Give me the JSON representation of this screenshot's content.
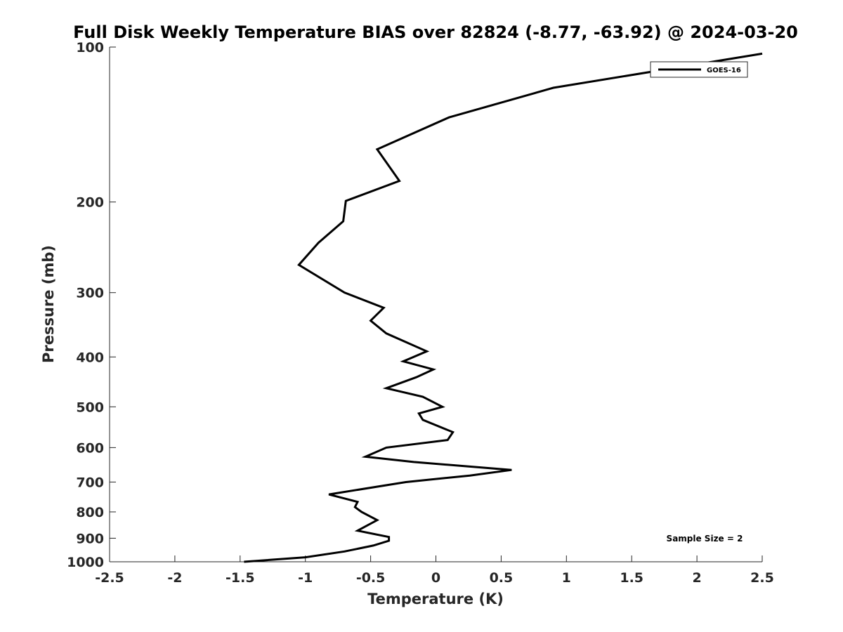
{
  "chart_data": {
    "type": "line",
    "title": "Full Disk Weekly Temperature BIAS over 82824 (-8.77, -63.92) @ 2024-03-20",
    "xlabel": "Temperature (K)",
    "ylabel": "Pressure (mb)",
    "xlim": [
      -2.5,
      2.5
    ],
    "ylim": [
      1000,
      100
    ],
    "y_scale": "log",
    "y_reversed": true,
    "grid": false,
    "legend_position": "top-right",
    "x_ticks": [
      -2.5,
      -2,
      -1.5,
      -1,
      -0.5,
      0,
      0.5,
      1,
      1.5,
      2,
      2.5
    ],
    "x_tick_labels": [
      "-2.5",
      "-2",
      "-1.5",
      "-1",
      "-0.5",
      "0",
      "0.5",
      "1",
      "1.5",
      "2",
      "2.5"
    ],
    "y_ticks": [
      100,
      200,
      300,
      400,
      500,
      600,
      700,
      800,
      900,
      1000
    ],
    "y_tick_labels": [
      "100",
      "200",
      "300",
      "400",
      "500",
      "600",
      "700",
      "800",
      "900",
      "1000"
    ],
    "annotation": "Sample Size = 2",
    "series": [
      {
        "name": "GOES-16",
        "color": "#000000",
        "points": [
          {
            "t": 2.5,
            "p": 103
          },
          {
            "t": 0.9,
            "p": 120
          },
          {
            "t": 0.1,
            "p": 137
          },
          {
            "t": -0.45,
            "p": 158
          },
          {
            "t": -0.28,
            "p": 182
          },
          {
            "t": -0.69,
            "p": 199
          },
          {
            "t": -0.71,
            "p": 218
          },
          {
            "t": -0.9,
            "p": 240
          },
          {
            "t": -1.05,
            "p": 265
          },
          {
            "t": -0.7,
            "p": 300
          },
          {
            "t": -0.4,
            "p": 321
          },
          {
            "t": -0.5,
            "p": 340
          },
          {
            "t": -0.38,
            "p": 360
          },
          {
            "t": -0.07,
            "p": 390
          },
          {
            "t": -0.25,
            "p": 408
          },
          {
            "t": -0.02,
            "p": 423
          },
          {
            "t": -0.15,
            "p": 438
          },
          {
            "t": -0.38,
            "p": 460
          },
          {
            "t": -0.1,
            "p": 478
          },
          {
            "t": 0.05,
            "p": 500
          },
          {
            "t": -0.13,
            "p": 515
          },
          {
            "t": -0.1,
            "p": 530
          },
          {
            "t": 0.13,
            "p": 560
          },
          {
            "t": 0.09,
            "p": 580
          },
          {
            "t": -0.38,
            "p": 600
          },
          {
            "t": -0.54,
            "p": 625
          },
          {
            "t": -0.17,
            "p": 640
          },
          {
            "t": 0.58,
            "p": 663
          },
          {
            "t": 0.26,
            "p": 680
          },
          {
            "t": -0.23,
            "p": 700
          },
          {
            "t": -0.82,
            "p": 740
          },
          {
            "t": -0.6,
            "p": 765
          },
          {
            "t": -0.62,
            "p": 783
          },
          {
            "t": -0.57,
            "p": 800
          },
          {
            "t": -0.45,
            "p": 830
          },
          {
            "t": -0.6,
            "p": 870
          },
          {
            "t": -0.36,
            "p": 895
          },
          {
            "t": -0.36,
            "p": 910
          },
          {
            "t": -0.48,
            "p": 930
          },
          {
            "t": -0.7,
            "p": 955
          },
          {
            "t": -1.0,
            "p": 980
          },
          {
            "t": -1.47,
            "p": 1000
          }
        ]
      }
    ]
  }
}
